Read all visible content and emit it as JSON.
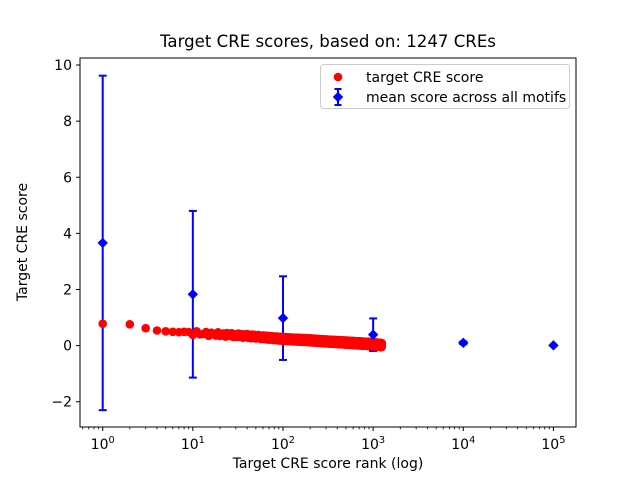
{
  "figure": {
    "background": "#ffffff",
    "frame_color": "#000000"
  },
  "chart_data": {
    "type": "scatter",
    "title": "Target CRE scores, based on: 1247 CREs",
    "xlabel": "Target CRE score rank (log)",
    "ylabel": "Target CRE score",
    "x_scale": "log",
    "y_scale": "linear",
    "xlim": [
      0.56,
      178000
    ],
    "ylim": [
      -2.9,
      10.25
    ],
    "x_ticks": [
      1,
      10,
      100,
      1000,
      10000,
      100000
    ],
    "y_ticks": [
      -2,
      0,
      2,
      4,
      6,
      8,
      10
    ],
    "grid": false,
    "legend_position": "upper right",
    "series": [
      {
        "name": "target CRE score",
        "type": "scatter",
        "marker": "circle",
        "color": "#ff0000",
        "n_points": 1247,
        "sample_points": [
          [
            1,
            0.78
          ],
          [
            2,
            0.76
          ],
          [
            3,
            0.62
          ],
          [
            4,
            0.54
          ],
          [
            5,
            0.51
          ],
          [
            7,
            0.48
          ],
          [
            10,
            0.45
          ],
          [
            15,
            0.42
          ],
          [
            20,
            0.4
          ],
          [
            30,
            0.37
          ],
          [
            50,
            0.32
          ],
          [
            70,
            0.28
          ],
          [
            100,
            0.24
          ],
          [
            150,
            0.21
          ],
          [
            200,
            0.19
          ],
          [
            300,
            0.15
          ],
          [
            500,
            0.11
          ],
          [
            700,
            0.08
          ],
          [
            1000,
            0.05
          ],
          [
            1247,
            0.02
          ]
        ]
      },
      {
        "name": "mean score across all motifs",
        "type": "errorbar",
        "marker": "diamond",
        "color": "#0000ff",
        "x": [
          1,
          10,
          100,
          1000,
          10000,
          100000
        ],
        "mean": [
          3.66,
          1.83,
          0.98,
          0.39,
          0.1,
          0.01
        ],
        "std": [
          5.96,
          2.97,
          1.49,
          0.58,
          0.05,
          0.02
        ]
      }
    ]
  }
}
